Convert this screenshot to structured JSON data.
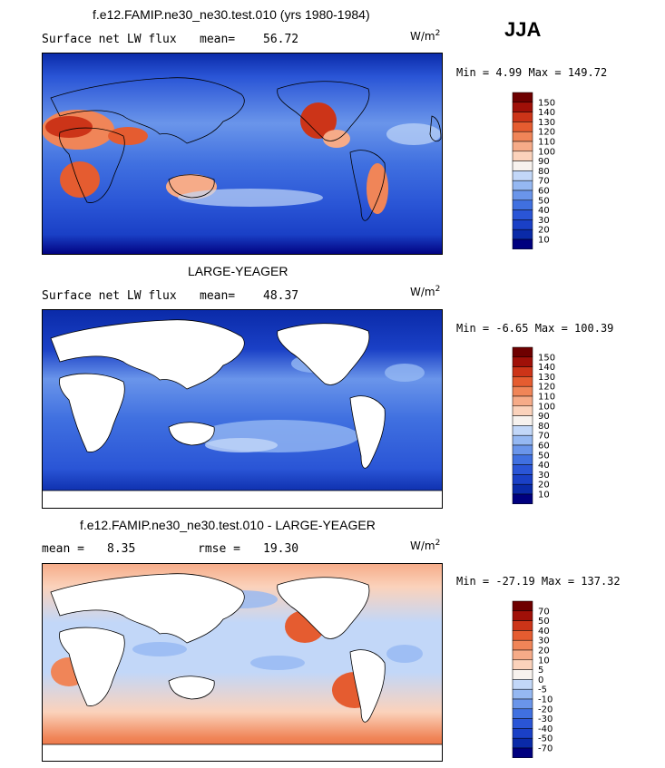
{
  "season": "JJA",
  "units": {
    "base": "W/m",
    "exp": "2"
  },
  "panels": [
    {
      "title": "f.e12.FAMIP.ne30_ne30.test.010 (yrs 1980-1984)",
      "variable": "Surface net LW flux",
      "stat1_label": "mean=",
      "stat1_value": "56.72",
      "minmax": "Min =   4.99 Max = 149.72",
      "colorbar": [
        "10",
        "20",
        "30",
        "40",
        "50",
        "60",
        "70",
        "80",
        "90",
        "100",
        "110",
        "120",
        "130",
        "140",
        "150"
      ]
    },
    {
      "title": "LARGE-YEAGER",
      "variable": "Surface net LW flux",
      "stat1_label": "mean=",
      "stat1_value": "48.37",
      "minmax": "Min =  -6.65 Max = 100.39",
      "colorbar": [
        "10",
        "20",
        "30",
        "40",
        "50",
        "60",
        "70",
        "80",
        "90",
        "100",
        "110",
        "120",
        "130",
        "140",
        "150"
      ]
    },
    {
      "title": "f.e12.FAMIP.ne30_ne30.test.010 - LARGE-YEAGER",
      "stat1_label": "mean =",
      "stat1_value": "8.35",
      "stat2_label": "rmse =",
      "stat2_value": "19.30",
      "minmax": "Min = -27.19 Max = 137.32",
      "colorbar": [
        "-70",
        "-50",
        "-40",
        "-30",
        "-20",
        "-10",
        "-5",
        "0",
        "5",
        "10",
        "20",
        "30",
        "40",
        "50",
        "70"
      ]
    }
  ],
  "chart_data": [
    {
      "type": "heatmap",
      "title": "f.e12.FAMIP.ne30_ne30.test.010 (yrs 1980-1984)",
      "subtitle": "Surface net LW flux",
      "mean": 56.72,
      "min": 4.99,
      "max": 149.72,
      "units": "W/m2",
      "levels": [
        10,
        20,
        30,
        40,
        50,
        60,
        70,
        80,
        90,
        100,
        110,
        120,
        130,
        140,
        150
      ],
      "colors": [
        "#00007f",
        "#0a2aa8",
        "#1a40c6",
        "#2a55d6",
        "#4070e0",
        "#6a95ea",
        "#95b8f2",
        "#c2d7f8",
        "#f7f2ee",
        "#fbd2bb",
        "#f6ab88",
        "#f08558",
        "#e55c30",
        "#cc3418",
        "#a01008",
        "#6e0000"
      ]
    },
    {
      "type": "heatmap",
      "title": "LARGE-YEAGER",
      "subtitle": "Surface net LW flux",
      "mean": 48.37,
      "min": -6.65,
      "max": 100.39,
      "units": "W/m2",
      "levels": [
        10,
        20,
        30,
        40,
        50,
        60,
        70,
        80,
        90,
        100,
        110,
        120,
        130,
        140,
        150
      ],
      "colors": [
        "#00007f",
        "#0a2aa8",
        "#1a40c6",
        "#2a55d6",
        "#4070e0",
        "#6a95ea",
        "#95b8f2",
        "#c2d7f8",
        "#f7f2ee",
        "#fbd2bb",
        "#f6ab88",
        "#f08558",
        "#e55c30",
        "#cc3418",
        "#a01008",
        "#6e0000"
      ]
    },
    {
      "type": "heatmap",
      "title": "f.e12.FAMIP.ne30_ne30.test.010 - LARGE-YEAGER",
      "mean": 8.35,
      "rmse": 19.3,
      "min": -27.19,
      "max": 137.32,
      "units": "W/m2",
      "levels": [
        -70,
        -50,
        -40,
        -30,
        -20,
        -10,
        -5,
        0,
        5,
        10,
        20,
        30,
        40,
        50,
        70
      ],
      "colors": [
        "#00007f",
        "#0a2aa8",
        "#1a40c6",
        "#2a55d6",
        "#4070e0",
        "#6a95ea",
        "#95b8f2",
        "#c2d7f8",
        "#f7f2ee",
        "#fbd2bb",
        "#f6ab88",
        "#f08558",
        "#e55c30",
        "#cc3418",
        "#a01008",
        "#6e0000"
      ]
    }
  ]
}
